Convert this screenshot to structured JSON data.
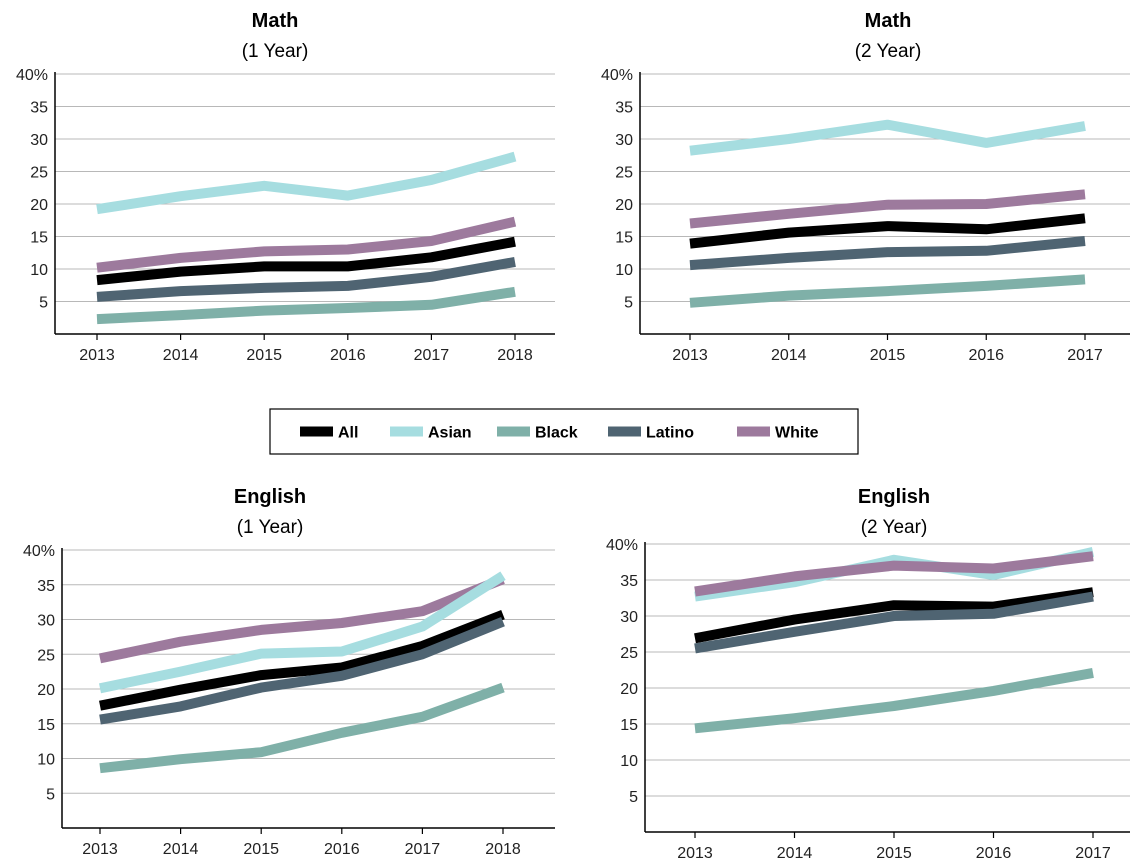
{
  "legend": {
    "items": [
      {
        "name": "All",
        "color": "#000000"
      },
      {
        "name": "Asian",
        "color": "#a6dde0"
      },
      {
        "name": "Black",
        "color": "#7fb0a8"
      },
      {
        "name": "Latino",
        "color": "#4f6472"
      },
      {
        "name": "White",
        "color": "#9d7a9d"
      }
    ]
  },
  "chart_data": [
    {
      "type": "line",
      "title": "Math",
      "subtitle": "(1 Year)",
      "x": [
        "2013",
        "2014",
        "2015",
        "2016",
        "2017",
        "2018"
      ],
      "ylim": [
        0,
        40
      ],
      "yticks": [
        "",
        "5",
        "10",
        "15",
        "20",
        "25",
        "30",
        "35",
        "40%"
      ],
      "grid": true,
      "series": [
        {
          "name": "Asian",
          "values": [
            19.2,
            21.2,
            22.8,
            21.3,
            23.7,
            27.3
          ]
        },
        {
          "name": "White",
          "values": [
            10.2,
            11.7,
            12.7,
            13.0,
            14.3,
            17.3
          ]
        },
        {
          "name": "All",
          "values": [
            8.3,
            9.6,
            10.4,
            10.4,
            11.8,
            14.2
          ]
        },
        {
          "name": "Latino",
          "values": [
            5.7,
            6.6,
            7.1,
            7.4,
            8.8,
            11.1
          ]
        },
        {
          "name": "Black",
          "values": [
            2.3,
            2.9,
            3.6,
            4.0,
            4.5,
            6.5
          ]
        }
      ]
    },
    {
      "type": "line",
      "title": "Math",
      "subtitle": "(2 Year)",
      "x": [
        "2013",
        "2014",
        "2015",
        "2016",
        "2017"
      ],
      "ylim": [
        0,
        40
      ],
      "yticks": [
        "",
        "5",
        "10",
        "15",
        "20",
        "25",
        "30",
        "35",
        "40%"
      ],
      "grid": true,
      "series": [
        {
          "name": "Asian",
          "values": [
            28.2,
            30.0,
            32.2,
            29.4,
            32.0
          ]
        },
        {
          "name": "White",
          "values": [
            17.0,
            18.5,
            19.9,
            20.0,
            21.5
          ]
        },
        {
          "name": "All",
          "values": [
            13.9,
            15.6,
            16.6,
            16.1,
            17.8
          ]
        },
        {
          "name": "Latino",
          "values": [
            10.6,
            11.7,
            12.6,
            12.8,
            14.3
          ]
        },
        {
          "name": "Black",
          "values": [
            4.8,
            5.9,
            6.6,
            7.4,
            8.4
          ]
        }
      ]
    },
    {
      "type": "line",
      "title": "English",
      "subtitle": "(1 Year)",
      "x": [
        "2013",
        "2014",
        "2015",
        "2016",
        "2017",
        "2018"
      ],
      "ylim": [
        0,
        40
      ],
      "yticks": [
        "",
        "5",
        "10",
        "15",
        "20",
        "25",
        "30",
        "35",
        "40%"
      ],
      "grid": true,
      "series": [
        {
          "name": "White",
          "values": [
            24.4,
            26.8,
            28.5,
            29.5,
            31.2,
            35.8
          ]
        },
        {
          "name": "Asian",
          "values": [
            20.1,
            22.5,
            25.1,
            25.4,
            29.0,
            36.3
          ]
        },
        {
          "name": "All",
          "values": [
            17.6,
            19.9,
            22.0,
            23.1,
            26.2,
            30.7
          ]
        },
        {
          "name": "Latino",
          "values": [
            15.6,
            17.5,
            20.2,
            21.9,
            25.0,
            29.7
          ]
        },
        {
          "name": "Black",
          "values": [
            8.6,
            9.9,
            10.9,
            13.7,
            16.0,
            20.2
          ]
        }
      ]
    },
    {
      "type": "line",
      "title": "English",
      "subtitle": "(2 Year)",
      "x": [
        "2013",
        "2014",
        "2015",
        "2016",
        "2017"
      ],
      "ylim": [
        0,
        40
      ],
      "yticks": [
        "",
        "5",
        "10",
        "15",
        "20",
        "25",
        "30",
        "35",
        "40%"
      ],
      "grid": true,
      "series": [
        {
          "name": "Asian",
          "values": [
            32.7,
            34.7,
            37.8,
            35.7,
            38.9
          ]
        },
        {
          "name": "White",
          "values": [
            33.4,
            35.5,
            37.0,
            36.6,
            38.3
          ]
        },
        {
          "name": "All",
          "values": [
            26.9,
            29.5,
            31.5,
            31.3,
            33.3
          ]
        },
        {
          "name": "Latino",
          "values": [
            25.5,
            27.8,
            30.0,
            30.3,
            32.7
          ]
        },
        {
          "name": "Black",
          "values": [
            14.4,
            15.8,
            17.5,
            19.6,
            22.1
          ]
        }
      ]
    }
  ]
}
